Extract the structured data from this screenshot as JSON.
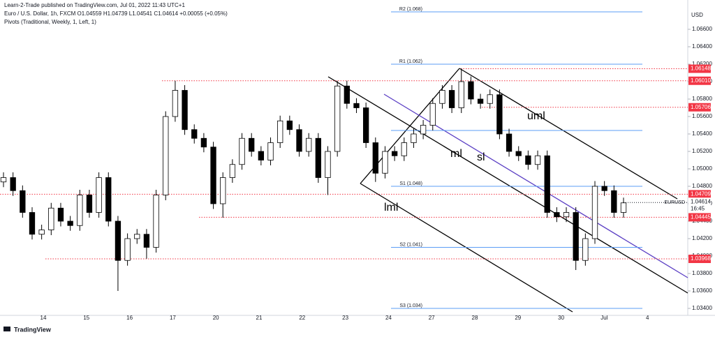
{
  "header": {
    "attribution": "Learn-2-Trade published on TradingView.com, Jul 01, 2022 11:43 UTC+1",
    "legend": "Euro / U.S. Dollar, 1h, FXCM  O1.04559 H1.04739 L1.04541 C1.04614 +0.00055 (+0.05%)",
    "indicator": "Pivots (Traditional, Weekly, 1, Left, 1)"
  },
  "footer": {
    "logo": "TradingView"
  },
  "chart_data": {
    "type": "candlestick",
    "currency": "USD",
    "symbol": "EURUSD",
    "countdown": "16:45",
    "ylim": [
      1.0332,
      1.06936
    ],
    "yticks": [
      {
        "value": 1.034,
        "label": "1.03400"
      },
      {
        "value": 1.036,
        "label": "1.03600"
      },
      {
        "value": 1.038,
        "label": "1.03800"
      },
      {
        "value": 1.04,
        "label": "1.04000"
      },
      {
        "value": 1.042,
        "label": "1.04200"
      },
      {
        "value": 1.044,
        "label": "1.04400"
      },
      {
        "value": 1.046,
        "label": "1.04600"
      },
      {
        "value": 1.048,
        "label": "1.04800"
      },
      {
        "value": 1.05,
        "label": "1.05000"
      },
      {
        "value": 1.052,
        "label": "1.05200"
      },
      {
        "value": 1.054,
        "label": "1.05400"
      },
      {
        "value": 1.056,
        "label": "1.05600"
      },
      {
        "value": 1.058,
        "label": "1.05800"
      },
      {
        "value": 1.06,
        "label": "1.06000"
      },
      {
        "value": 1.062,
        "label": "1.06200"
      },
      {
        "value": 1.064,
        "label": "1.06400"
      },
      {
        "value": 1.066,
        "label": "1.06600"
      }
    ],
    "x_labels": [
      "14",
      "15",
      "16",
      "17",
      "20",
      "21",
      "22",
      "23",
      "24",
      "27",
      "28",
      "29",
      "30",
      "Jul",
      "4"
    ],
    "open": [
      1.0485,
      1.049,
      1.0475,
      1.045,
      1.0425,
      1.043,
      1.0455,
      1.044,
      1.0435,
      1.047,
      1.045,
      1.049,
      1.044,
      1.0395,
      1.042,
      1.0425,
      1.041,
      1.047,
      1.056,
      1.059,
      1.0545,
      1.0535,
      1.0525,
      1.046,
      1.049,
      1.0505,
      1.0535,
      1.052,
      1.051,
      1.053,
      1.0555,
      1.0545,
      1.052,
      1.0535,
      1.049,
      1.052,
      1.0595,
      1.0575,
      1.057,
      1.053,
      1.0495,
      1.052,
      1.0515,
      1.053,
      1.054,
      1.055,
      1.0575,
      1.059,
      1.057,
      1.06,
      1.058,
      1.0575,
      1.0585,
      1.054,
      1.052,
      1.0515,
      1.0505,
      1.0515,
      1.045,
      1.0445,
      1.045,
      1.0395,
      1.042,
      1.048,
      1.0475,
      1.045
    ],
    "high": [
      1.0496,
      1.0496,
      1.0481,
      1.0456,
      1.0436,
      1.0461,
      1.0461,
      1.0446,
      1.0476,
      1.0476,
      1.0496,
      1.0496,
      1.0446,
      1.0426,
      1.0431,
      1.0431,
      1.0476,
      1.0566,
      1.0601,
      1.0596,
      1.0551,
      1.0541,
      1.0531,
      1.0496,
      1.0511,
      1.0541,
      1.0541,
      1.0526,
      1.0536,
      1.0561,
      1.0561,
      1.0551,
      1.0541,
      1.0541,
      1.0526,
      1.0601,
      1.0601,
      1.0581,
      1.0576,
      1.0536,
      1.0526,
      1.0526,
      1.0536,
      1.0546,
      1.0556,
      1.0581,
      1.0596,
      1.0596,
      1.0615,
      1.0606,
      1.0586,
      1.0591,
      1.0591,
      1.0546,
      1.0526,
      1.0521,
      1.0521,
      1.0521,
      1.0456,
      1.0456,
      1.0456,
      1.0426,
      1.0486,
      1.0486,
      1.0481,
      1.0467
    ],
    "low": [
      1.0479,
      1.0469,
      1.0444,
      1.0419,
      1.0419,
      1.0424,
      1.0434,
      1.0429,
      1.0429,
      1.0444,
      1.0444,
      1.0434,
      1.036,
      1.0389,
      1.0414,
      1.0397,
      1.0404,
      1.0464,
      1.0554,
      1.0539,
      1.0529,
      1.0519,
      1.0454,
      1.0444,
      1.0484,
      1.0499,
      1.0514,
      1.0504,
      1.0504,
      1.0524,
      1.0539,
      1.0514,
      1.0514,
      1.0484,
      1.047,
      1.0514,
      1.0569,
      1.0564,
      1.0524,
      1.0485,
      1.0489,
      1.0509,
      1.0509,
      1.0524,
      1.0534,
      1.0544,
      1.0569,
      1.0564,
      1.0564,
      1.0574,
      1.0569,
      1.0569,
      1.0534,
      1.0514,
      1.0509,
      1.0499,
      1.0499,
      1.0444,
      1.0439,
      1.0439,
      1.0384,
      1.0389,
      1.0414,
      1.0469,
      1.0444,
      1.0444
    ],
    "close": [
      1.049,
      1.0475,
      1.045,
      1.0425,
      1.043,
      1.0455,
      1.044,
      1.0435,
      1.047,
      1.045,
      1.049,
      1.044,
      1.0395,
      1.042,
      1.0425,
      1.041,
      1.047,
      1.056,
      1.059,
      1.0545,
      1.0535,
      1.0525,
      1.046,
      1.049,
      1.0505,
      1.0535,
      1.052,
      1.051,
      1.053,
      1.0555,
      1.0545,
      1.052,
      1.0535,
      1.049,
      1.052,
      1.0595,
      1.0575,
      1.057,
      1.053,
      1.0495,
      1.052,
      1.0515,
      1.053,
      1.054,
      1.055,
      1.0575,
      1.059,
      1.057,
      1.06,
      1.058,
      1.0575,
      1.0585,
      1.054,
      1.052,
      1.0515,
      1.0505,
      1.0515,
      1.045,
      1.0445,
      1.045,
      1.0395,
      1.042,
      1.048,
      1.0475,
      1.045,
      1.0461
    ],
    "last_price": 1.04614,
    "levels": [
      1.06148,
      {
        "value": 1.0601,
        "label": "1.06010"
      },
      1.05706,
      1.04709,
      1.04445,
      1.03968
    ],
    "level_color": "#f23645",
    "pivots": [
      {
        "label": "R2 (1.068)",
        "value": 1.068
      },
      {
        "label": "R1 (1.062)",
        "value": 1.062
      },
      {
        "value": 1.0544
      },
      {
        "label": "S1 (1.048)",
        "value": 1.048
      },
      {
        "label": "S2 (1.041)",
        "value": 1.041
      },
      {
        "label": "S3 (1.034)",
        "value": 1.034
      }
    ],
    "pivot_color": "#5b9cf6",
    "annotations": [
      "uml",
      "ml",
      "sl",
      "lml"
    ]
  }
}
